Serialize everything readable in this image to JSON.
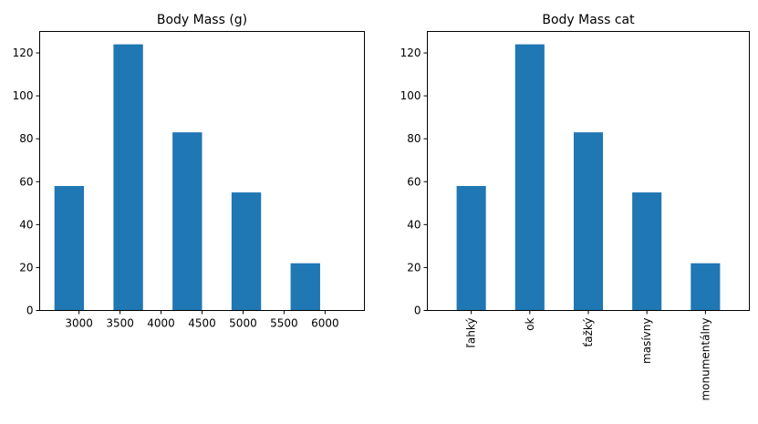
{
  "chart_data": [
    {
      "type": "bar",
      "title": "Body Mass (g)",
      "xlabel": "",
      "ylabel": "",
      "color": "#1f77b4",
      "bin_edges": [
        2700,
        3060,
        3420,
        3780,
        4140,
        4500,
        4860,
        5220,
        5580,
        5940,
        6300
      ],
      "values": [
        58,
        0,
        124,
        0,
        83,
        0,
        55,
        0,
        22,
        0
      ],
      "xticks": [
        3000,
        3500,
        4000,
        4500,
        5000,
        5500,
        6000
      ],
      "xtick_labels": [
        "3000",
        "3500",
        "4000",
        "4500",
        "5000",
        "5500",
        "6000"
      ],
      "xlim": [
        2520,
        6480
      ],
      "yticks": [
        0,
        20,
        40,
        60,
        80,
        100,
        120
      ],
      "ytick_labels": [
        "0",
        "20",
        "40",
        "60",
        "80",
        "100",
        "120"
      ],
      "ylim": [
        0,
        130
      ],
      "grid": false
    },
    {
      "type": "bar",
      "title": "Body Mass cat",
      "xlabel": "",
      "ylabel": "",
      "color": "#1f77b4",
      "categories": [
        "ľahký",
        "ok",
        "ťažký",
        "masívny",
        "monumentálny"
      ],
      "values": [
        58,
        124,
        83,
        55,
        22
      ],
      "yticks": [
        0,
        20,
        40,
        60,
        80,
        100,
        120
      ],
      "ytick_labels": [
        "0",
        "20",
        "40",
        "60",
        "80",
        "100",
        "120"
      ],
      "ylim": [
        0,
        130
      ],
      "grid": false
    }
  ]
}
